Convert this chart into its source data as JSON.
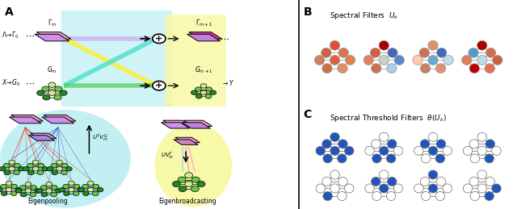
{
  "fig_width": 6.4,
  "fig_height": 2.59,
  "dpi": 100,
  "bg_color": "#ffffff",
  "cyan_bg": "#b8eef0",
  "yellow_bg": "#f8f8a0",
  "pink_feat": "#F8A0C0",
  "purple_feat": "#D090F0",
  "magenta_feat": "#E030A0",
  "lavender_feat": "#C080E0",
  "blue_C": "#2255BB",
  "white": "#ffffff",
  "B_graphs": [
    [
      "#E05030",
      "#D06040",
      "#E07050",
      "#D08060",
      "#E06040",
      "#E08050",
      "#D07040",
      "#E09060"
    ],
    [
      "#AA0000",
      "#D06040",
      "#4466BB",
      "#E08060",
      "#CCCCCC",
      "#5588CC",
      "#D07050",
      "#AACCEE"
    ],
    [
      "#E09070",
      "#D07050",
      "#4466BB",
      "#FFCCAA",
      "#66AACC",
      "#BBDDEE",
      "#D08060",
      "#E09070"
    ],
    [
      "#AA0000",
      "#5599CC",
      "#D07050",
      "#E08060",
      "#BBDDEE",
      "#D06040",
      "#BB0000",
      "#E07050"
    ]
  ],
  "C_row1": [
    [
      1,
      1,
      1,
      1,
      1,
      1,
      1,
      1
    ],
    [
      0,
      0,
      1,
      0,
      1,
      0,
      1,
      1
    ],
    [
      0,
      1,
      1,
      0,
      1,
      0,
      0,
      1
    ],
    [
      0,
      0,
      1,
      0,
      0,
      0,
      0,
      1
    ]
  ],
  "C_row2": [
    [
      0,
      0,
      0,
      0,
      0,
      0,
      1,
      0
    ],
    [
      0,
      1,
      1,
      0,
      1,
      0,
      0,
      0
    ],
    [
      1,
      0,
      0,
      0,
      1,
      0,
      0,
      0
    ],
    [
      0,
      0,
      0,
      0,
      0,
      1,
      0,
      1
    ]
  ],
  "green_nodes": [
    "#CCEE88",
    "#66CC44",
    "#228B22"
  ],
  "line_colors_top": [
    "#CC99FF",
    "#FFEE00",
    "#44DDCC",
    "#66CC66"
  ],
  "red_fan": "#DD3322",
  "blue_fan": "#3355CC"
}
